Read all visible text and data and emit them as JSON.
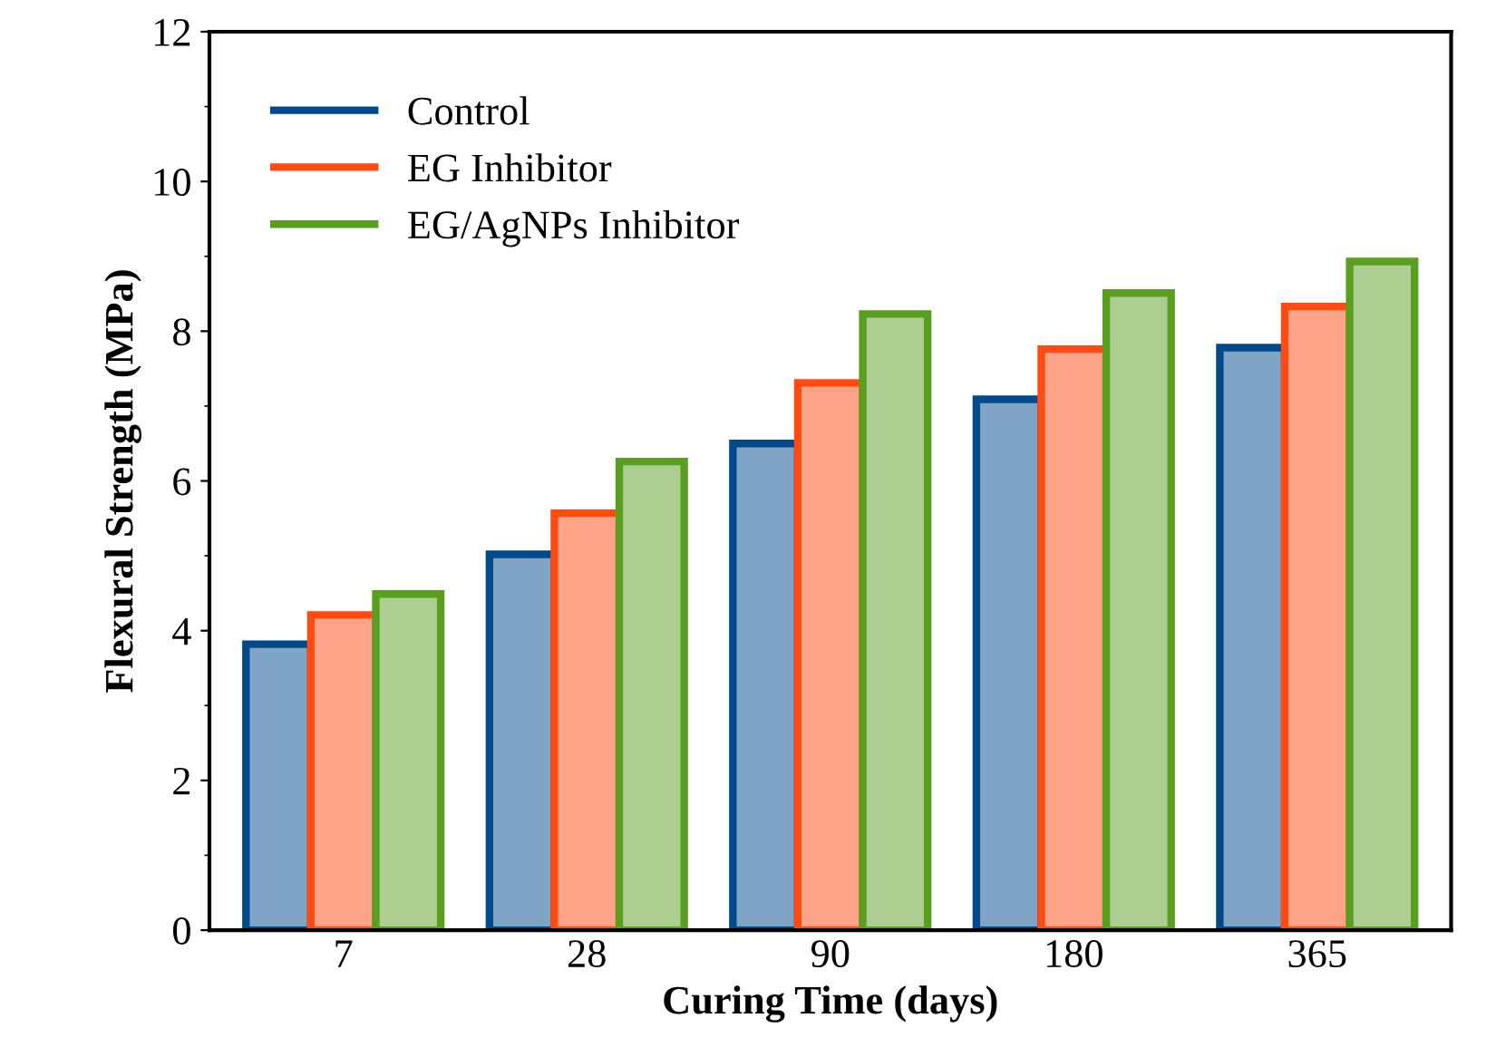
{
  "chart_data": {
    "type": "bar",
    "xlabel": "Curing Time (days)",
    "ylabel": "Flexural Strength (MPa)",
    "categories": [
      "7",
      "28",
      "90",
      "180",
      "365"
    ],
    "series": [
      {
        "name": "Control",
        "color": "#004a8c",
        "values": [
          3.82,
          5.02,
          6.5,
          7.09,
          7.78
        ]
      },
      {
        "name": "EG Inhibitor",
        "color": "#ff4a12",
        "values": [
          4.21,
          5.57,
          7.31,
          7.76,
          8.33
        ]
      },
      {
        "name": "EG/AgNPs Inhibitor",
        "color": "#5a9e20",
        "values": [
          4.49,
          6.26,
          8.23,
          8.51,
          8.93
        ]
      }
    ],
    "ylim": [
      0,
      12
    ],
    "yticks": [
      0,
      2,
      4,
      6,
      8,
      10,
      12
    ],
    "grid": false,
    "legend": "top left"
  }
}
